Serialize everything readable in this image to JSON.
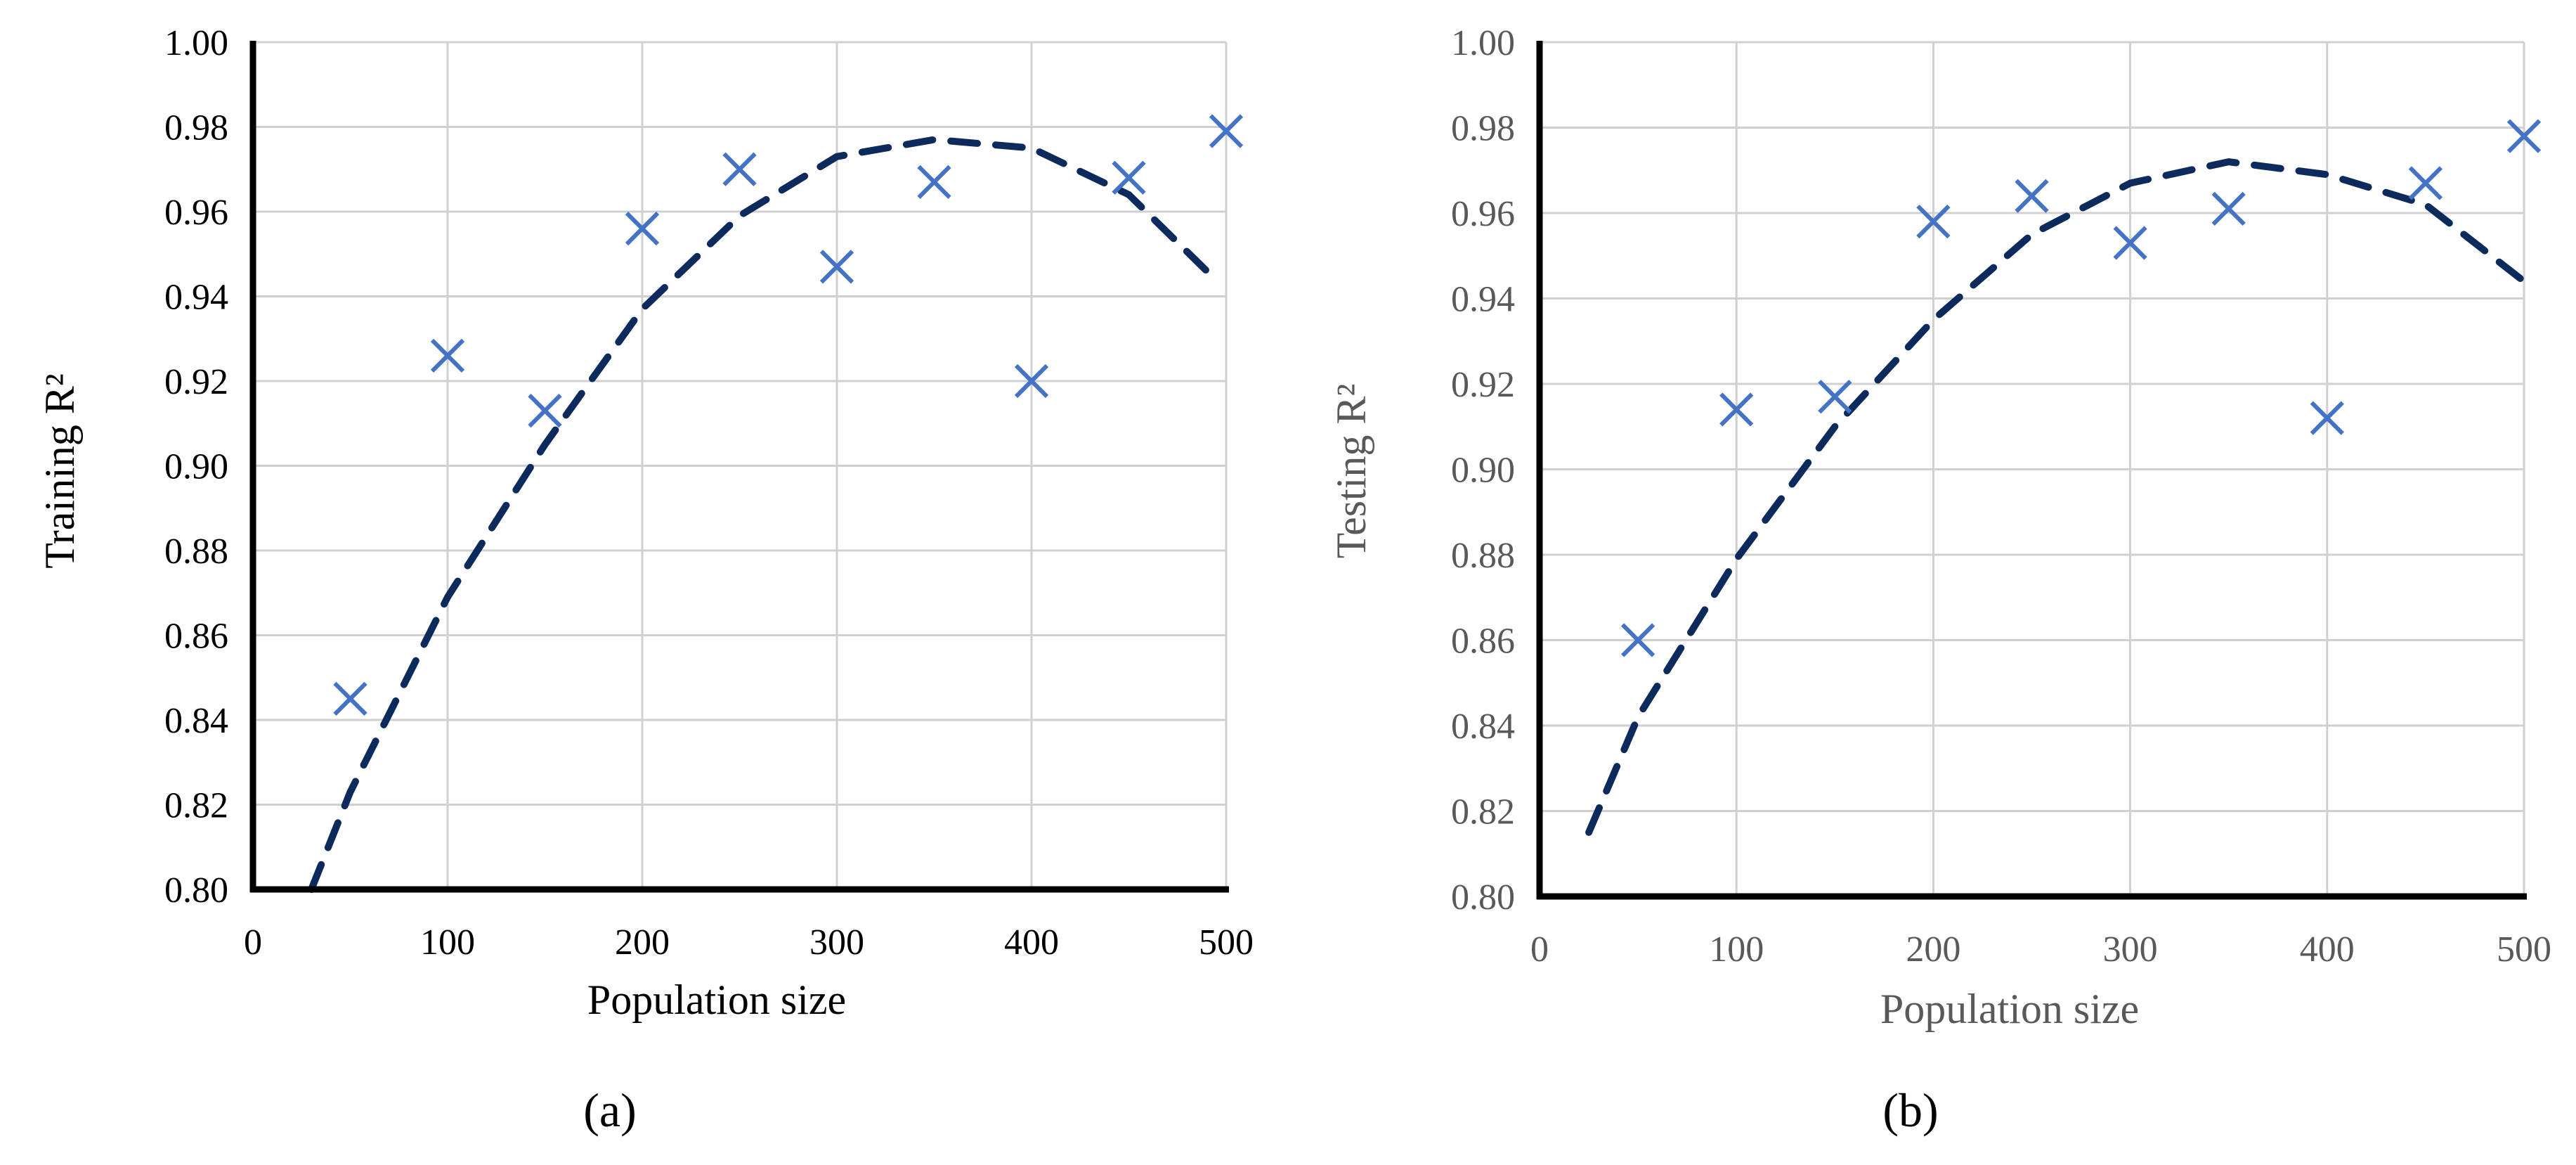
{
  "chart_data": [
    {
      "type": "scatter",
      "panel_label": "(a)",
      "xlabel": "Population size",
      "ylabel": "Training R²",
      "xlim": [
        0,
        500
      ],
      "ylim": [
        0.8,
        1.0
      ],
      "xticks": [
        0,
        100,
        200,
        300,
        400,
        500
      ],
      "yticks": [
        0.8,
        0.82,
        0.84,
        0.86,
        0.88,
        0.9,
        0.92,
        0.94,
        0.96,
        0.98,
        1.0
      ],
      "grid": true,
      "marker": "x",
      "marker_color": "#4472C4",
      "trend_color": "#0D2A5C",
      "trend_style": "dashed polynomial",
      "series": [
        {
          "x": [
            50,
            100,
            150,
            200,
            250,
            300,
            350,
            400,
            450,
            500
          ],
          "y": [
            0.845,
            0.926,
            0.913,
            0.956,
            0.97,
            0.947,
            0.967,
            0.92,
            0.968,
            0.979
          ]
        }
      ],
      "trendline": {
        "x": [
          30,
          50,
          100,
          150,
          200,
          250,
          300,
          350,
          400,
          450,
          490
        ],
        "y": [
          0.8,
          0.823,
          0.869,
          0.905,
          0.937,
          0.959,
          0.973,
          0.977,
          0.975,
          0.964,
          0.946
        ]
      }
    },
    {
      "type": "scatter",
      "panel_label": "(b)",
      "xlabel": "Population size",
      "ylabel": "Testing R²",
      "xlim": [
        0,
        500
      ],
      "ylim": [
        0.8,
        1.0
      ],
      "xticks": [
        0,
        100,
        200,
        300,
        400,
        500
      ],
      "yticks": [
        0.8,
        0.82,
        0.84,
        0.86,
        0.88,
        0.9,
        0.92,
        0.94,
        0.96,
        0.98,
        1.0
      ],
      "grid": true,
      "marker": "x",
      "marker_color": "#4472C4",
      "trend_color": "#0D2A5C",
      "trend_style": "dashed polynomial",
      "series": [
        {
          "x": [
            50,
            100,
            150,
            200,
            250,
            300,
            350,
            400,
            450,
            500
          ],
          "y": [
            0.86,
            0.914,
            0.917,
            0.958,
            0.964,
            0.953,
            0.961,
            0.912,
            0.967,
            0.978
          ]
        }
      ],
      "trendline": {
        "x": [
          25,
          50,
          100,
          150,
          200,
          250,
          300,
          350,
          400,
          450,
          500
        ],
        "y": [
          0.815,
          0.842,
          0.879,
          0.91,
          0.935,
          0.955,
          0.967,
          0.972,
          0.969,
          0.962,
          0.944
        ]
      }
    }
  ]
}
